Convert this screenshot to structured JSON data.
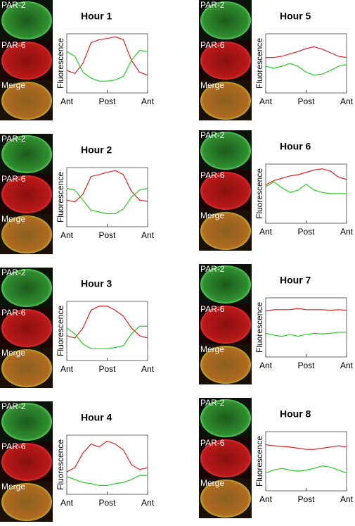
{
  "chart_data": [
    {
      "type": "line",
      "title": "Hour 1",
      "image_labels": [
        "PAR-2",
        "PAR-6",
        "Merge"
      ],
      "y_label": "Fluorescence",
      "xlim": [
        0,
        1
      ],
      "ylim": [
        0,
        1
      ],
      "xticks": [
        {
          "value": 0,
          "label": "Ant"
        },
        {
          "value": 0.5,
          "label": "Post"
        },
        {
          "value": 1,
          "label": "Ant"
        }
      ],
      "x": [
        0,
        0.1,
        0.2,
        0.3,
        0.4,
        0.5,
        0.6,
        0.7,
        0.8,
        0.9,
        1
      ],
      "series": [
        {
          "color": "#e02020",
          "values": [
            0.38,
            0.33,
            0.5,
            0.85,
            0.9,
            0.92,
            0.95,
            0.9,
            0.55,
            0.35,
            0.3
          ]
        },
        {
          "color": "#20d020",
          "values": [
            0.7,
            0.62,
            0.35,
            0.25,
            0.2,
            0.2,
            0.22,
            0.28,
            0.55,
            0.72,
            0.7
          ]
        }
      ]
    },
    {
      "type": "line",
      "title": "Hour 2",
      "image_labels": [
        "PAR-2",
        "PAR-6",
        "Merge"
      ],
      "y_label": "Fluorescence",
      "xlim": [
        0,
        1
      ],
      "ylim": [
        0,
        1
      ],
      "xticks": [
        {
          "value": 0,
          "label": "Ant"
        },
        {
          "value": 0.5,
          "label": "Post"
        },
        {
          "value": 1,
          "label": "Ant"
        }
      ],
      "x": [
        0,
        0.1,
        0.2,
        0.3,
        0.4,
        0.5,
        0.6,
        0.7,
        0.8,
        0.9,
        1
      ],
      "series": [
        {
          "color": "#e02020",
          "values": [
            0.45,
            0.42,
            0.55,
            0.85,
            0.88,
            0.92,
            0.95,
            0.88,
            0.6,
            0.45,
            0.43
          ]
        },
        {
          "color": "#20d020",
          "values": [
            0.65,
            0.62,
            0.45,
            0.28,
            0.25,
            0.22,
            0.22,
            0.3,
            0.5,
            0.62,
            0.65
          ]
        }
      ]
    },
    {
      "type": "line",
      "title": "Hour 3",
      "image_labels": [
        "PAR-2",
        "PAR-6",
        "Merge"
      ],
      "y_label": "Fluorescence",
      "xlim": [
        0,
        1
      ],
      "ylim": [
        0,
        1
      ],
      "xticks": [
        {
          "value": 0,
          "label": "Ant"
        },
        {
          "value": 0.5,
          "label": "Post"
        },
        {
          "value": 1,
          "label": "Ant"
        }
      ],
      "x": [
        0,
        0.1,
        0.2,
        0.3,
        0.4,
        0.5,
        0.6,
        0.7,
        0.8,
        0.9,
        1
      ],
      "series": [
        {
          "color": "#e02020",
          "values": [
            0.42,
            0.38,
            0.55,
            0.85,
            0.92,
            0.92,
            0.85,
            0.75,
            0.55,
            0.42,
            0.38
          ]
        },
        {
          "color": "#20d020",
          "values": [
            0.55,
            0.45,
            0.28,
            0.2,
            0.2,
            0.2,
            0.22,
            0.25,
            0.45,
            0.58,
            0.58
          ]
        }
      ]
    },
    {
      "type": "line",
      "title": "Hour 4",
      "image_labels": [
        "PAR-2",
        "PAR-6",
        "Merge"
      ],
      "y_label": "Fluorescence",
      "xlim": [
        0,
        1
      ],
      "ylim": [
        0,
        1
      ],
      "xticks": [
        {
          "value": 0,
          "label": "Ant"
        },
        {
          "value": 0.5,
          "label": "Post"
        },
        {
          "value": 1,
          "label": "Ant"
        }
      ],
      "x": [
        0,
        0.1,
        0.2,
        0.3,
        0.4,
        0.5,
        0.6,
        0.7,
        0.8,
        0.9,
        1
      ],
      "series": [
        {
          "color": "#e02020",
          "values": [
            0.38,
            0.45,
            0.7,
            0.85,
            0.8,
            0.9,
            0.85,
            0.75,
            0.5,
            0.42,
            0.45
          ]
        },
        {
          "color": "#20d020",
          "values": [
            0.3,
            0.25,
            0.2,
            0.18,
            0.15,
            0.15,
            0.18,
            0.2,
            0.25,
            0.32,
            0.32
          ]
        }
      ]
    },
    {
      "type": "line",
      "title": "Hour 5",
      "image_labels": [
        "PAR-2",
        "PAR-6",
        "Merge"
      ],
      "y_label": "Fluorescence",
      "xlim": [
        0,
        1
      ],
      "ylim": [
        0,
        1
      ],
      "xticks": [
        {
          "value": 0,
          "label": "Ant"
        },
        {
          "value": 0.5,
          "label": "Post"
        },
        {
          "value": 1,
          "label": "Ant"
        }
      ],
      "x": [
        0,
        0.1,
        0.2,
        0.3,
        0.4,
        0.5,
        0.6,
        0.7,
        0.8,
        0.9,
        1
      ],
      "series": [
        {
          "color": "#e02020",
          "values": [
            0.6,
            0.6,
            0.62,
            0.66,
            0.7,
            0.75,
            0.78,
            0.74,
            0.68,
            0.62,
            0.6
          ]
        },
        {
          "color": "#20d020",
          "values": [
            0.45,
            0.42,
            0.45,
            0.5,
            0.45,
            0.35,
            0.3,
            0.32,
            0.38,
            0.45,
            0.48
          ]
        }
      ]
    },
    {
      "type": "line",
      "title": "Hour 6",
      "image_labels": [
        "PAR-2",
        "PAR-6",
        "Merge"
      ],
      "y_label": "Fluorescence",
      "xlim": [
        0,
        1
      ],
      "ylim": [
        0,
        1
      ],
      "xticks": [
        {
          "value": 0,
          "label": "Ant"
        },
        {
          "value": 0.5,
          "label": "Post"
        },
        {
          "value": 1,
          "label": "Ant"
        }
      ],
      "x": [
        0,
        0.1,
        0.2,
        0.3,
        0.4,
        0.5,
        0.6,
        0.7,
        0.8,
        0.9,
        1
      ],
      "series": [
        {
          "color": "#e02020",
          "values": [
            0.65,
            0.72,
            0.76,
            0.8,
            0.82,
            0.86,
            0.9,
            0.92,
            0.88,
            0.78,
            0.74
          ]
        },
        {
          "color": "#20d020",
          "values": [
            0.62,
            0.7,
            0.6,
            0.52,
            0.56,
            0.66,
            0.56,
            0.52,
            0.5,
            0.5,
            0.5
          ]
        }
      ]
    },
    {
      "type": "line",
      "title": "Hour 7",
      "image_labels": [
        "PAR-2",
        "PAR-6",
        "Merge"
      ],
      "y_label": "Fluorescence",
      "xlim": [
        0,
        1
      ],
      "ylim": [
        0,
        1
      ],
      "xticks": [
        {
          "value": 0,
          "label": "Ant"
        },
        {
          "value": 0.5,
          "label": "Post"
        },
        {
          "value": 1,
          "label": "Ant"
        }
      ],
      "x": [
        0,
        0.1,
        0.2,
        0.3,
        0.4,
        0.5,
        0.6,
        0.7,
        0.8,
        0.9,
        1
      ],
      "series": [
        {
          "color": "#e02020",
          "values": [
            0.78,
            0.8,
            0.8,
            0.8,
            0.82,
            0.8,
            0.8,
            0.8,
            0.79,
            0.8,
            0.79
          ]
        },
        {
          "color": "#20d020",
          "values": [
            0.4,
            0.37,
            0.35,
            0.38,
            0.35,
            0.38,
            0.4,
            0.39,
            0.4,
            0.42,
            0.42
          ]
        }
      ]
    },
    {
      "type": "line",
      "title": "Hour 8",
      "image_labels": [
        "PAR-2",
        "PAR-6",
        "Merge"
      ],
      "y_label": "Fluorescence",
      "xlim": [
        0,
        1
      ],
      "ylim": [
        0,
        1
      ],
      "xticks": [
        {
          "value": 0,
          "label": "Ant"
        },
        {
          "value": 0.5,
          "label": "Post"
        },
        {
          "value": 1,
          "label": "Ant"
        }
      ],
      "x": [
        0,
        0.1,
        0.2,
        0.3,
        0.4,
        0.5,
        0.6,
        0.7,
        0.8,
        0.9,
        1
      ],
      "series": [
        {
          "color": "#e02020",
          "values": [
            0.78,
            0.76,
            0.75,
            0.74,
            0.72,
            0.7,
            0.7,
            0.72,
            0.74,
            0.76,
            0.74
          ]
        },
        {
          "color": "#20d020",
          "values": [
            0.3,
            0.35,
            0.38,
            0.35,
            0.33,
            0.35,
            0.38,
            0.42,
            0.4,
            0.35,
            0.3
          ]
        }
      ]
    }
  ]
}
